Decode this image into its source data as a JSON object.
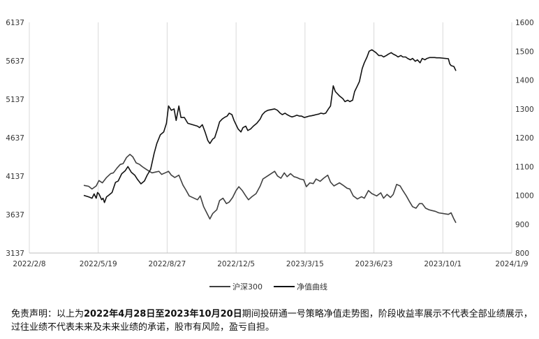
{
  "chart_data": {
    "type": "line",
    "x_tick_labels": [
      "2022/2/8",
      "2022/5/19",
      "2022/8/27",
      "2022/12/5",
      "2023/3/15",
      "2023/6/23",
      "2023/10/1",
      "2024/1/9"
    ],
    "x_range": [
      "2022-02-08",
      "2024-01-09"
    ],
    "y_left_ticks": [
      3137,
      3637,
      4137,
      4637,
      5137,
      5637,
      6137
    ],
    "y_left_range": [
      3137,
      6137
    ],
    "y_right_ticks": [
      800,
      900,
      1000,
      1100,
      1200,
      1300,
      1400,
      1500,
      1600
    ],
    "y_right_range": [
      800,
      1600
    ],
    "grid": "vertical",
    "legend_position": "bottom",
    "series": [
      {
        "name": "沪深300",
        "axis": "left",
        "color": "#404040",
        "points": [
          [
            "2022-04-28",
            4017
          ],
          [
            "2022-05-05",
            4005
          ],
          [
            "2022-05-10",
            3970
          ],
          [
            "2022-05-16",
            4010
          ],
          [
            "2022-05-20",
            4080
          ],
          [
            "2022-05-25",
            4050
          ],
          [
            "2022-05-31",
            4120
          ],
          [
            "2022-06-06",
            4170
          ],
          [
            "2022-06-10",
            4180
          ],
          [
            "2022-06-15",
            4240
          ],
          [
            "2022-06-20",
            4290
          ],
          [
            "2022-06-24",
            4300
          ],
          [
            "2022-06-29",
            4380
          ],
          [
            "2022-07-04",
            4420
          ],
          [
            "2022-07-08",
            4390
          ],
          [
            "2022-07-13",
            4310
          ],
          [
            "2022-07-18",
            4290
          ],
          [
            "2022-07-22",
            4260
          ],
          [
            "2022-07-27",
            4230
          ],
          [
            "2022-08-01",
            4200
          ],
          [
            "2022-08-05",
            4180
          ],
          [
            "2022-08-10",
            4190
          ],
          [
            "2022-08-15",
            4200
          ],
          [
            "2022-08-19",
            4160
          ],
          [
            "2022-08-24",
            4180
          ],
          [
            "2022-08-29",
            4200
          ],
          [
            "2022-09-02",
            4150
          ],
          [
            "2022-09-07",
            4120
          ],
          [
            "2022-09-13",
            4150
          ],
          [
            "2022-09-19",
            4020
          ],
          [
            "2022-09-23",
            3960
          ],
          [
            "2022-09-28",
            3880
          ],
          [
            "2022-10-10",
            3830
          ],
          [
            "2022-10-14",
            3880
          ],
          [
            "2022-10-19",
            3740
          ],
          [
            "2022-10-24",
            3650
          ],
          [
            "2022-10-28",
            3580
          ],
          [
            "2022-11-01",
            3650
          ],
          [
            "2022-11-07",
            3700
          ],
          [
            "2022-11-11",
            3820
          ],
          [
            "2022-11-16",
            3850
          ],
          [
            "2022-11-21",
            3780
          ],
          [
            "2022-11-25",
            3800
          ],
          [
            "2022-11-30",
            3860
          ],
          [
            "2022-12-05",
            3950
          ],
          [
            "2022-12-09",
            4000
          ],
          [
            "2022-12-14",
            3950
          ],
          [
            "2022-12-19",
            3880
          ],
          [
            "2022-12-23",
            3830
          ],
          [
            "2022-12-28",
            3870
          ],
          [
            "2023-01-03",
            3910
          ],
          [
            "2023-01-09",
            4010
          ],
          [
            "2023-01-13",
            4100
          ],
          [
            "2023-01-18",
            4130
          ],
          [
            "2023-01-30",
            4200
          ],
          [
            "2023-02-03",
            4140
          ],
          [
            "2023-02-08",
            4110
          ],
          [
            "2023-02-13",
            4180
          ],
          [
            "2023-02-17",
            4130
          ],
          [
            "2023-02-22",
            4170
          ],
          [
            "2023-02-27",
            4130
          ],
          [
            "2023-03-03",
            4120
          ],
          [
            "2023-03-08",
            4100
          ],
          [
            "2023-03-13",
            4090
          ],
          [
            "2023-03-17",
            4000
          ],
          [
            "2023-03-22",
            4050
          ],
          [
            "2023-03-27",
            4040
          ],
          [
            "2023-03-31",
            4100
          ],
          [
            "2023-04-06",
            4070
          ],
          [
            "2023-04-11",
            4110
          ],
          [
            "2023-04-17",
            4150
          ],
          [
            "2023-04-21",
            4060
          ],
          [
            "2023-04-26",
            4010
          ],
          [
            "2023-05-04",
            4050
          ],
          [
            "2023-05-09",
            4020
          ],
          [
            "2023-05-15",
            3980
          ],
          [
            "2023-05-19",
            3970
          ],
          [
            "2023-05-24",
            3880
          ],
          [
            "2023-05-30",
            3840
          ],
          [
            "2023-06-05",
            3870
          ],
          [
            "2023-06-09",
            3850
          ],
          [
            "2023-06-15",
            3950
          ],
          [
            "2023-06-20",
            3910
          ],
          [
            "2023-06-27",
            3880
          ],
          [
            "2023-07-03",
            3920
          ],
          [
            "2023-07-07",
            3850
          ],
          [
            "2023-07-12",
            3900
          ],
          [
            "2023-07-17",
            3860
          ],
          [
            "2023-07-21",
            3900
          ],
          [
            "2023-07-26",
            4030
          ],
          [
            "2023-07-31",
            4010
          ],
          [
            "2023-08-04",
            3950
          ],
          [
            "2023-08-09",
            3880
          ],
          [
            "2023-08-14",
            3800
          ],
          [
            "2023-08-18",
            3740
          ],
          [
            "2023-08-23",
            3720
          ],
          [
            "2023-08-28",
            3780
          ],
          [
            "2023-09-01",
            3780
          ],
          [
            "2023-09-06",
            3720
          ],
          [
            "2023-09-11",
            3700
          ],
          [
            "2023-09-15",
            3690
          ],
          [
            "2023-09-20",
            3680
          ],
          [
            "2023-09-25",
            3660
          ],
          [
            "2023-10-09",
            3640
          ],
          [
            "2023-10-13",
            3660
          ],
          [
            "2023-10-17",
            3580
          ],
          [
            "2023-10-20",
            3530
          ]
        ]
      },
      {
        "name": "净值曲线",
        "axis": "right",
        "color": "#111111",
        "points": [
          [
            "2022-04-28",
            1000
          ],
          [
            "2022-05-05",
            995
          ],
          [
            "2022-05-10",
            990
          ],
          [
            "2022-05-13",
            1005
          ],
          [
            "2022-05-16",
            990
          ],
          [
            "2022-05-18",
            1010
          ],
          [
            "2022-05-20",
            1005
          ],
          [
            "2022-05-24",
            985
          ],
          [
            "2022-05-26",
            990
          ],
          [
            "2022-05-28",
            975
          ],
          [
            "2022-05-31",
            995
          ],
          [
            "2022-06-03",
            1000
          ],
          [
            "2022-06-08",
            1010
          ],
          [
            "2022-06-13",
            1045
          ],
          [
            "2022-06-17",
            1050
          ],
          [
            "2022-06-22",
            1075
          ],
          [
            "2022-06-27",
            1085
          ],
          [
            "2022-07-01",
            1100
          ],
          [
            "2022-07-06",
            1080
          ],
          [
            "2022-07-11",
            1070
          ],
          [
            "2022-07-15",
            1055
          ],
          [
            "2022-07-20",
            1040
          ],
          [
            "2022-07-25",
            1050
          ],
          [
            "2022-07-29",
            1070
          ],
          [
            "2022-08-03",
            1090
          ],
          [
            "2022-08-08",
            1145
          ],
          [
            "2022-08-12",
            1180
          ],
          [
            "2022-08-17",
            1210
          ],
          [
            "2022-08-22",
            1220
          ],
          [
            "2022-08-26",
            1250
          ],
          [
            "2022-08-29",
            1310
          ],
          [
            "2022-09-02",
            1295
          ],
          [
            "2022-09-06",
            1300
          ],
          [
            "2022-09-09",
            1260
          ],
          [
            "2022-09-13",
            1310
          ],
          [
            "2022-09-16",
            1270
          ],
          [
            "2022-09-21",
            1270
          ],
          [
            "2022-09-26",
            1250
          ],
          [
            "2022-10-10",
            1240
          ],
          [
            "2022-10-13",
            1235
          ],
          [
            "2022-10-17",
            1245
          ],
          [
            "2022-10-21",
            1220
          ],
          [
            "2022-10-25",
            1190
          ],
          [
            "2022-10-28",
            1180
          ],
          [
            "2022-11-01",
            1195
          ],
          [
            "2022-11-04",
            1200
          ],
          [
            "2022-11-08",
            1230
          ],
          [
            "2022-11-11",
            1255
          ],
          [
            "2022-11-15",
            1265
          ],
          [
            "2022-11-18",
            1270
          ],
          [
            "2022-11-22",
            1275
          ],
          [
            "2022-11-25",
            1285
          ],
          [
            "2022-11-29",
            1280
          ],
          [
            "2022-12-02",
            1260
          ],
          [
            "2022-12-05",
            1245
          ],
          [
            "2022-12-08",
            1230
          ],
          [
            "2022-12-12",
            1220
          ],
          [
            "2022-12-15",
            1235
          ],
          [
            "2022-12-19",
            1240
          ],
          [
            "2022-12-22",
            1225
          ],
          [
            "2022-12-26",
            1230
          ],
          [
            "2022-12-30",
            1240
          ],
          [
            "2023-01-04",
            1250
          ],
          [
            "2023-01-09",
            1265
          ],
          [
            "2023-01-12",
            1280
          ],
          [
            "2023-01-16",
            1290
          ],
          [
            "2023-01-20",
            1295
          ],
          [
            "2023-01-30",
            1300
          ],
          [
            "2023-02-03",
            1295
          ],
          [
            "2023-02-07",
            1285
          ],
          [
            "2023-02-10",
            1280
          ],
          [
            "2023-02-14",
            1285
          ],
          [
            "2023-02-17",
            1280
          ],
          [
            "2023-02-21",
            1275
          ],
          [
            "2023-02-24",
            1272
          ],
          [
            "2023-02-28",
            1275
          ],
          [
            "2023-03-03",
            1278
          ],
          [
            "2023-03-07",
            1275
          ],
          [
            "2023-03-10",
            1275
          ],
          [
            "2023-03-14",
            1270
          ],
          [
            "2023-03-17",
            1272
          ],
          [
            "2023-03-21",
            1275
          ],
          [
            "2023-03-24",
            1276
          ],
          [
            "2023-03-28",
            1278
          ],
          [
            "2023-03-31",
            1280
          ],
          [
            "2023-04-04",
            1282
          ],
          [
            "2023-04-07",
            1285
          ],
          [
            "2023-04-11",
            1283
          ],
          [
            "2023-04-14",
            1285
          ],
          [
            "2023-04-18",
            1300
          ],
          [
            "2023-04-21",
            1310
          ],
          [
            "2023-04-25",
            1380
          ],
          [
            "2023-04-28",
            1360
          ],
          [
            "2023-05-04",
            1345
          ],
          [
            "2023-05-09",
            1335
          ],
          [
            "2023-05-12",
            1325
          ],
          [
            "2023-05-16",
            1330
          ],
          [
            "2023-05-19",
            1325
          ],
          [
            "2023-05-23",
            1330
          ],
          [
            "2023-05-26",
            1360
          ],
          [
            "2023-05-30",
            1380
          ],
          [
            "2023-06-02",
            1395
          ],
          [
            "2023-06-06",
            1440
          ],
          [
            "2023-06-09",
            1460
          ],
          [
            "2023-06-13",
            1480
          ],
          [
            "2023-06-16",
            1500
          ],
          [
            "2023-06-20",
            1505
          ],
          [
            "2023-06-26",
            1495
          ],
          [
            "2023-06-30",
            1485
          ],
          [
            "2023-07-04",
            1485
          ],
          [
            "2023-07-07",
            1480
          ],
          [
            "2023-07-11",
            1485
          ],
          [
            "2023-07-14",
            1490
          ],
          [
            "2023-07-18",
            1495
          ],
          [
            "2023-07-21",
            1490
          ],
          [
            "2023-07-25",
            1485
          ],
          [
            "2023-07-28",
            1480
          ],
          [
            "2023-08-01",
            1485
          ],
          [
            "2023-08-04",
            1480
          ],
          [
            "2023-08-08",
            1480
          ],
          [
            "2023-08-11",
            1475
          ],
          [
            "2023-08-15",
            1470
          ],
          [
            "2023-08-18",
            1475
          ],
          [
            "2023-08-22",
            1465
          ],
          [
            "2023-08-25",
            1470
          ],
          [
            "2023-08-29",
            1460
          ],
          [
            "2023-09-01",
            1475
          ],
          [
            "2023-09-05",
            1470
          ],
          [
            "2023-09-08",
            1475
          ],
          [
            "2023-09-12",
            1478
          ],
          [
            "2023-09-15",
            1478
          ],
          [
            "2023-09-19",
            1478
          ],
          [
            "2023-09-22",
            1477
          ],
          [
            "2023-09-26",
            1477
          ],
          [
            "2023-10-09",
            1474
          ],
          [
            "2023-10-11",
            1456
          ],
          [
            "2023-10-13",
            1450
          ],
          [
            "2023-10-17",
            1447
          ],
          [
            "2023-10-20",
            1432
          ]
        ]
      }
    ]
  },
  "disclaimer": {
    "prefix": "免责声明：以上为",
    "date_range": "2022年4月28日至2023年10月20日",
    "suffix": "期间投研通一号策略净值走势图，阶段收益率展示不代表全部业绩展示，过往业绩不代表未来及未来业绩的承诺，股市有风险，盈亏自担。"
  }
}
